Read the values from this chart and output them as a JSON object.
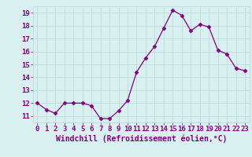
{
  "x": [
    0,
    1,
    2,
    3,
    4,
    5,
    6,
    7,
    8,
    9,
    10,
    11,
    12,
    13,
    14,
    15,
    16,
    17,
    18,
    19,
    20,
    21,
    22,
    23
  ],
  "y": [
    12.0,
    11.5,
    11.2,
    12.0,
    12.0,
    12.0,
    11.8,
    10.8,
    10.8,
    11.4,
    12.2,
    14.4,
    15.5,
    16.4,
    17.8,
    19.2,
    18.8,
    17.6,
    18.1,
    17.9,
    16.1,
    15.8,
    14.7,
    14.5
  ],
  "line_color": "#800080",
  "marker": "D",
  "marker_size": 2.5,
  "bg_color": "#d8f0f0",
  "grid_color": "#b8d8d8",
  "xlabel": "Windchill (Refroidissement éolien,°C)",
  "xlabel_color": "#800080",
  "xlabel_fontsize": 7,
  "tick_label_color": "#800080",
  "tick_fontsize": 6.5,
  "ylim": [
    10.5,
    19.5
  ],
  "xlim": [
    -0.5,
    23.5
  ],
  "yticks": [
    11,
    12,
    13,
    14,
    15,
    16,
    17,
    18,
    19
  ],
  "xticks": [
    0,
    1,
    2,
    3,
    4,
    5,
    6,
    7,
    8,
    9,
    10,
    11,
    12,
    13,
    14,
    15,
    16,
    17,
    18,
    19,
    20,
    21,
    22,
    23
  ]
}
